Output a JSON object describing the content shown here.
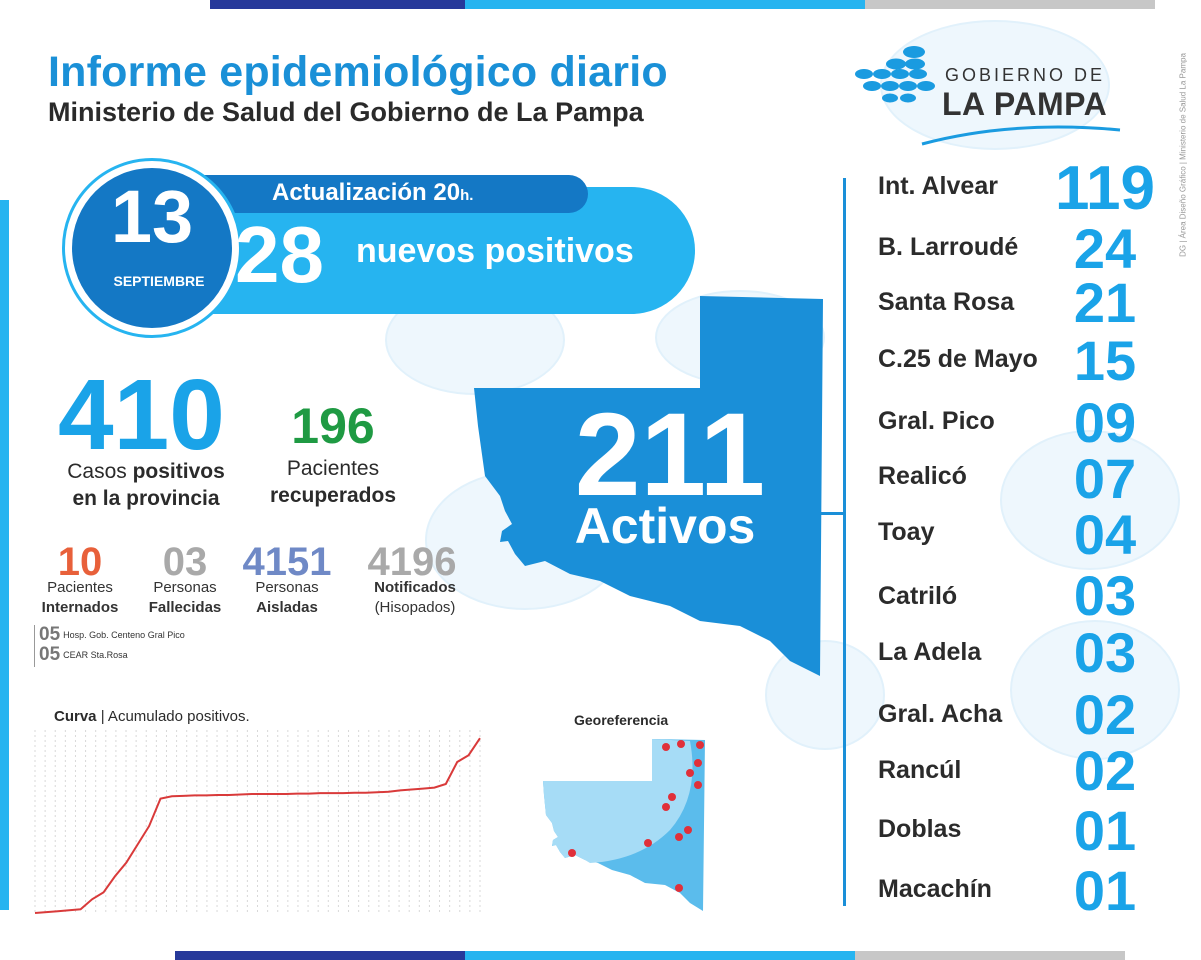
{
  "header": {
    "title": "Informe epidemiológico diario",
    "subtitle": "Ministerio de Salud del Gobierno de La Pampa"
  },
  "logo": {
    "top": "GOBIERNO DE",
    "main": "LA PAMPA"
  },
  "credit": "DG | Área Diseño Gráfico | Ministerio de Salud La Pampa",
  "date": {
    "day": "13",
    "month": "SEPTIEMBRE"
  },
  "update": {
    "label": "Actualización 20",
    "suffix": "h."
  },
  "new_positives": {
    "value": "28",
    "label": "nuevos positivos"
  },
  "cases": {
    "value": "410",
    "label_pre": "Casos ",
    "label_bold": "positivos",
    "label_line2": "en la provincia"
  },
  "recovered": {
    "value": "196",
    "label_line1": "Pacientes",
    "label_line2": "recuperados"
  },
  "small_stats": [
    {
      "value": "10",
      "line1": "Pacientes",
      "line2": "Internados",
      "bold_line": 2,
      "color": "#e8603a"
    },
    {
      "value": "03",
      "line1": "Personas",
      "line2": "Fallecidas",
      "bold_line": 2,
      "color": "#a9a9a9"
    },
    {
      "value": "4151",
      "line1": "Personas",
      "line2": "Aisladas",
      "bold_line": 2,
      "color": "#6f89c6"
    },
    {
      "value": "4196",
      "line1": "Notificados",
      "line2": "(Hisopados)",
      "bold_line": 1,
      "color": "#a9a9a9"
    }
  ],
  "hospitals": [
    {
      "count": "05",
      "name": "Hosp. Gob. Centeno Gral Pico"
    },
    {
      "count": "05",
      "name": "CEAR Sta.Rosa"
    }
  ],
  "active": {
    "value": "211",
    "label": "Activos"
  },
  "chart": {
    "title_bold": "Curva",
    "title_rest": " | Acumulado positivos."
  },
  "chart_data": {
    "type": "line",
    "title": "Curva | Acumulado positivos.",
    "series": [
      {
        "values": [
          0,
          2,
          4,
          6,
          8,
          30,
          45,
          80,
          110,
          150,
          190,
          250,
          255,
          256,
          257,
          257,
          258,
          258,
          259,
          260,
          260,
          260,
          260,
          261,
          261,
          262,
          262,
          262,
          263,
          263,
          264,
          265,
          268,
          270,
          272,
          274,
          282,
          330,
          345,
          382
        ]
      }
    ],
    "color": "#d93a3a",
    "grid": true
  },
  "georef": {
    "title": "Georeferencia"
  },
  "localities": [
    {
      "name": "Int. Alvear",
      "count": "119"
    },
    {
      "name": "B. Larroudé",
      "count": "24"
    },
    {
      "name": "Santa Rosa",
      "count": "21"
    },
    {
      "name": "C.25 de Mayo",
      "count": "15"
    },
    {
      "name": "Gral. Pico",
      "count": "09"
    },
    {
      "name": "Realicó",
      "count": "07"
    },
    {
      "name": "Toay",
      "count": "04"
    },
    {
      "name": "Catriló",
      "count": "03"
    },
    {
      "name": "La Adela",
      "count": "03"
    },
    {
      "name": "Gral. Acha",
      "count": "02"
    },
    {
      "name": "Rancúl",
      "count": "02"
    },
    {
      "name": "Doblas",
      "count": "01"
    },
    {
      "name": "Macachín",
      "count": "01"
    }
  ]
}
